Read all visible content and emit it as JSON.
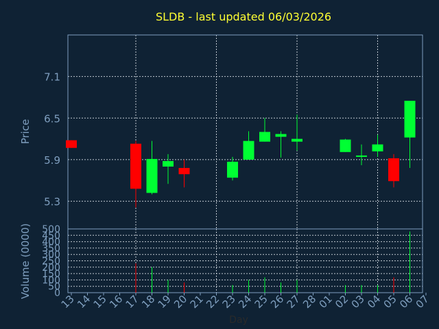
{
  "colors": {
    "background": "#0f2234",
    "title": "#ffff33",
    "axis_text": "#7f9fbf",
    "frame": "#7f9fbf",
    "grid": "#c0c8d0",
    "up": "#00ff33",
    "down": "#ff0000"
  },
  "chart_data": {
    "type": "candlestick",
    "title": "SLDB - last updated 06/03/2026",
    "xlabel": "Day",
    "ylabel": "Price",
    "volume_ylabel": "Volume (0000)",
    "grid": true,
    "x_ticks": [
      "13",
      "14",
      "15",
      "16",
      "17",
      "18",
      "19",
      "20",
      "21",
      "22",
      "23",
      "24",
      "25",
      "26",
      "27",
      "28",
      "01",
      "02",
      "03",
      "04",
      "05",
      "06",
      "07"
    ],
    "price_ylim": [
      4.9,
      7.7
    ],
    "price_ticks": [
      "5.3",
      "5.9",
      "6.5",
      "7.1"
    ],
    "volume_ylim": [
      0,
      500
    ],
    "volume_ticks": [
      "0",
      "50",
      "100",
      "150",
      "200",
      "250",
      "300",
      "350",
      "400",
      "450",
      "500"
    ],
    "candles": [
      {
        "x": "13",
        "open": 6.18,
        "high": 6.18,
        "low": 6.07,
        "close": 6.07,
        "volume": 0
      },
      {
        "x": "17",
        "open": 6.13,
        "high": 6.17,
        "low": 5.21,
        "close": 5.48,
        "volume": 230
      },
      {
        "x": "18",
        "open": 5.42,
        "high": 6.17,
        "low": 5.4,
        "close": 5.91,
        "volume": 200
      },
      {
        "x": "19",
        "open": 5.8,
        "high": 5.98,
        "low": 5.55,
        "close": 5.88,
        "volume": 100
      },
      {
        "x": "20",
        "open": 5.78,
        "high": 5.9,
        "low": 5.5,
        "close": 5.69,
        "volume": 80
      },
      {
        "x": "23",
        "open": 5.64,
        "high": 5.94,
        "low": 5.6,
        "close": 5.87,
        "volume": 60
      },
      {
        "x": "24",
        "open": 5.9,
        "high": 6.31,
        "low": 5.9,
        "close": 6.17,
        "volume": 100
      },
      {
        "x": "25",
        "open": 6.16,
        "high": 6.5,
        "low": 6.16,
        "close": 6.3,
        "volume": 120
      },
      {
        "x": "26",
        "open": 6.23,
        "high": 6.31,
        "low": 5.93,
        "close": 6.27,
        "volume": 80
      },
      {
        "x": "27",
        "open": 6.16,
        "high": 6.55,
        "low": 6.03,
        "close": 6.2,
        "volume": 100
      },
      {
        "x": "02",
        "open": 6.01,
        "high": 6.2,
        "low": 6.01,
        "close": 6.19,
        "volume": 60
      },
      {
        "x": "03",
        "open": 5.94,
        "high": 6.12,
        "low": 5.82,
        "close": 5.96,
        "volume": 60
      },
      {
        "x": "04",
        "open": 6.02,
        "high": 6.26,
        "low": 5.94,
        "close": 6.12,
        "volume": 60
      },
      {
        "x": "05",
        "open": 5.92,
        "high": 5.98,
        "low": 5.5,
        "close": 5.59,
        "volume": 120
      },
      {
        "x": "06",
        "open": 6.22,
        "high": 6.75,
        "low": 5.78,
        "close": 6.75,
        "volume": 480
      }
    ]
  }
}
